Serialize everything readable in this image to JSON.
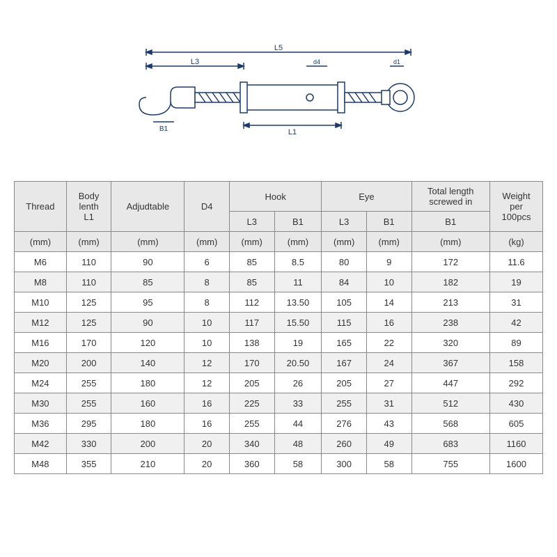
{
  "diagram": {
    "stroke": "#1a3a6e",
    "labels": [
      "L5",
      "L3",
      "L1",
      "B1",
      "d4",
      "d1"
    ]
  },
  "table": {
    "header_bg": "#e8e8e8",
    "alt_row_bg": "#f0f0f0",
    "border_color": "#888888",
    "header1": {
      "thread": "Thread",
      "body": "Body\nlenth\nL1",
      "adj": "Adjudtable",
      "d4": "D4",
      "hook": "Hook",
      "eye": "Eye",
      "total": "Total length\nscrewed in",
      "weight": "Weight\nper\n100pcs"
    },
    "header2": {
      "hook_l3": "L3",
      "hook_b1": "B1",
      "eye_l3": "L3",
      "eye_b1": "B1",
      "total_b1": "B1"
    },
    "units": {
      "thread": "(mm)",
      "body": "(mm)",
      "adj": "(mm)",
      "d4": "(mm)",
      "hook_l3": "(mm)",
      "hook_b1": "(mm)",
      "eye_l3": "(mm)",
      "eye_b1": "(mm)",
      "total": "(mm)",
      "weight": "(kg)"
    },
    "rows": [
      {
        "thread": "M6",
        "body": "110",
        "adj": "90",
        "d4": "6",
        "hl3": "85",
        "hb1": "8.5",
        "el3": "80",
        "eb1": "9",
        "total": "172",
        "weight": "11.6"
      },
      {
        "thread": "M8",
        "body": "110",
        "adj": "85",
        "d4": "8",
        "hl3": "85",
        "hb1": "11",
        "el3": "84",
        "eb1": "10",
        "total": "182",
        "weight": "19"
      },
      {
        "thread": "M10",
        "body": "125",
        "adj": "95",
        "d4": "8",
        "hl3": "112",
        "hb1": "13.50",
        "el3": "105",
        "eb1": "14",
        "total": "213",
        "weight": "31"
      },
      {
        "thread": "M12",
        "body": "125",
        "adj": "90",
        "d4": "10",
        "hl3": "117",
        "hb1": "15.50",
        "el3": "115",
        "eb1": "16",
        "total": "238",
        "weight": "42"
      },
      {
        "thread": "M16",
        "body": "170",
        "adj": "120",
        "d4": "10",
        "hl3": "138",
        "hb1": "19",
        "el3": "165",
        "eb1": "22",
        "total": "320",
        "weight": "89"
      },
      {
        "thread": "M20",
        "body": "200",
        "adj": "140",
        "d4": "12",
        "hl3": "170",
        "hb1": "20.50",
        "el3": "167",
        "eb1": "24",
        "total": "367",
        "weight": "158"
      },
      {
        "thread": "M24",
        "body": "255",
        "adj": "180",
        "d4": "12",
        "hl3": "205",
        "hb1": "26",
        "el3": "205",
        "eb1": "27",
        "total": "447",
        "weight": "292"
      },
      {
        "thread": "M30",
        "body": "255",
        "adj": "160",
        "d4": "16",
        "hl3": "225",
        "hb1": "33",
        "el3": "255",
        "eb1": "31",
        "total": "512",
        "weight": "430"
      },
      {
        "thread": "M36",
        "body": "295",
        "adj": "180",
        "d4": "16",
        "hl3": "255",
        "hb1": "44",
        "el3": "276",
        "eb1": "43",
        "total": "568",
        "weight": "605"
      },
      {
        "thread": "M42",
        "body": "330",
        "adj": "200",
        "d4": "20",
        "hl3": "340",
        "hb1": "48",
        "el3": "260",
        "eb1": "49",
        "total": "683",
        "weight": "1160"
      },
      {
        "thread": "M48",
        "body": "355",
        "adj": "210",
        "d4": "20",
        "hl3": "360",
        "hb1": "58",
        "el3": "300",
        "eb1": "58",
        "total": "755",
        "weight": "1600"
      }
    ]
  }
}
